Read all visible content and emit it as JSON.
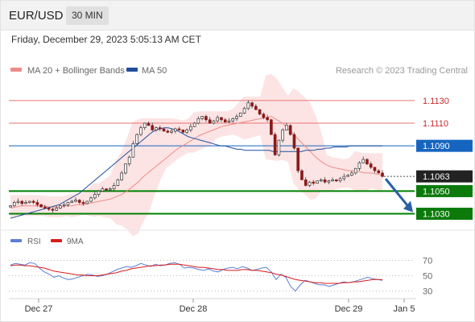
{
  "header": {
    "symbol": "EUR/USD",
    "timeframe": "30 MIN",
    "datetime": "Friday, December 29, 2023 5:05:13 AM CET"
  },
  "legend": {
    "ma20_label": "MA 20 + Bollinger Bands",
    "ma20_color": "#f08a8a",
    "ma50_label": "MA 50",
    "ma50_color": "#1f4e9c",
    "attribution": "Research © 2023 Trading Central"
  },
  "rsi_legend": {
    "rsi_label": "RSI",
    "rsi_color": "#5b7fd6",
    "ma9_label": "9MA",
    "ma9_color": "#d81b1b"
  },
  "chart_data": [
    {
      "type": "candlestick",
      "x_ticks": [
        "Dec 27",
        "Dec 28",
        "Dec 29",
        "Jan 5"
      ],
      "ylim": [
        1.1019,
        1.1147
      ],
      "current_price": 1.1063,
      "levels": [
        {
          "label": "1.1130",
          "value": 1.113,
          "kind": "resistance",
          "color": "#e57373"
        },
        {
          "label": "1.1110",
          "value": 1.111,
          "kind": "resistance",
          "color": "#e57373"
        },
        {
          "label": "1.1090",
          "value": 1.109,
          "kind": "pivot",
          "color": "#1565c0"
        },
        {
          "label": "1.1063",
          "value": 1.1063,
          "kind": "last",
          "color": "#333333"
        },
        {
          "label": "1.1050",
          "value": 1.105,
          "kind": "support",
          "color": "#008000"
        },
        {
          "label": "1.1030",
          "value": 1.103,
          "kind": "support",
          "color": "#008000"
        }
      ],
      "forecast_target": 1.103,
      "path": [
        1.1037,
        1.104,
        1.1041,
        1.1039,
        1.104,
        1.1041,
        1.104,
        1.1038,
        1.1036,
        1.1035,
        1.1034,
        1.1033,
        1.1035,
        1.1037,
        1.1038,
        1.104,
        1.1041,
        1.1042,
        1.104,
        1.1039,
        1.1041,
        1.1044,
        1.1047,
        1.105,
        1.1052,
        1.1051,
        1.1052,
        1.1055,
        1.106,
        1.1066,
        1.1074,
        1.108,
        1.1092,
        1.11,
        1.1106,
        1.111,
        1.1108,
        1.1104,
        1.1106,
        1.1105,
        1.1103,
        1.1102,
        1.1103,
        1.1105,
        1.1104,
        1.1102,
        1.1104,
        1.1107,
        1.111,
        1.1114,
        1.1116,
        1.1113,
        1.111,
        1.1112,
        1.1115,
        1.1113,
        1.1111,
        1.1112,
        1.1114,
        1.1116,
        1.1119,
        1.1123,
        1.1128,
        1.1125,
        1.1122,
        1.1118,
        1.1115,
        1.1113,
        1.11,
        1.1082,
        1.1095,
        1.1104,
        1.1108,
        1.11,
        1.1088,
        1.1068,
        1.106,
        1.1055,
        1.1058,
        1.1057,
        1.1059,
        1.106,
        1.1058,
        1.1059,
        1.106,
        1.1059,
        1.1061,
        1.1063,
        1.1064,
        1.1066,
        1.107,
        1.1075,
        1.1078,
        1.1074,
        1.1071,
        1.1068,
        1.1066,
        1.1063
      ],
      "ma20": [
        1.1035,
        1.1036,
        1.1037,
        1.1037,
        1.1037,
        1.1037,
        1.1037,
        1.1036,
        1.1036,
        1.1036,
        1.1037,
        1.1037,
        1.1038,
        1.1038,
        1.1039,
        1.104,
        1.1041,
        1.1042,
        1.1043,
        1.1045,
        1.1047,
        1.105,
        1.1054,
        1.1058,
        1.1063,
        1.1067,
        1.1071,
        1.1075,
        1.1079,
        1.1083,
        1.1087,
        1.109,
        1.1093,
        1.1096,
        1.1099,
        1.1101,
        1.1103,
        1.1105,
        1.1107,
        1.1108,
        1.1109,
        1.111,
        1.1111,
        1.1112,
        1.1113,
        1.1114,
        1.1115,
        1.1116,
        1.1113,
        1.111,
        1.1105,
        1.11,
        1.1095,
        1.109,
        1.1085,
        1.108,
        1.1076,
        1.1073,
        1.1071,
        1.107,
        1.1069,
        1.1068,
        1.1068,
        1.1067,
        1.1066,
        1.1066,
        1.1065,
        1.1064
      ],
      "ma50": [
        1.1026,
        1.1027,
        1.1028,
        1.1029,
        1.103,
        1.1031,
        1.1032,
        1.1033,
        1.1034,
        1.1035,
        1.1036,
        1.1037,
        1.1038,
        1.104,
        1.1042,
        1.1044,
        1.1046,
        1.1048,
        1.1051,
        1.1054,
        1.1057,
        1.106,
        1.1063,
        1.1066,
        1.1069,
        1.1072,
        1.1075,
        1.1078,
        1.1081,
        1.1084,
        1.1087,
        1.109,
        1.1093,
        1.1096,
        1.1099,
        1.1102,
        1.1104,
        1.1105,
        1.1106,
        1.1106,
        1.1105,
        1.1104,
        1.1102,
        1.11,
        1.1098,
        1.1097,
        1.1096,
        1.1095,
        1.1094,
        1.1093,
        1.1092,
        1.1091,
        1.109,
        1.109,
        1.1089,
        1.1088,
        1.1087,
        1.1087,
        1.1086,
        1.1086,
        1.1086,
        1.1086,
        1.1086,
        1.1086,
        1.1086,
        1.1085,
        1.1085,
        1.1085,
        1.1085,
        1.1085,
        1.1085,
        1.1085,
        1.1085,
        1.1086,
        1.1086,
        1.1086,
        1.1087,
        1.1087,
        1.1088,
        1.1088,
        1.1089,
        1.1089,
        1.1089,
        1.1089,
        1.109,
        1.109,
        1.109,
        1.109,
        1.109,
        1.109,
        1.109,
        1.109,
        1.109
      ]
    },
    {
      "type": "line",
      "name": "RSI",
      "yticks": [
        30,
        50,
        70
      ],
      "ylim": [
        20,
        80
      ],
      "rsi": [
        64,
        66,
        65,
        64,
        67,
        66,
        60,
        55,
        52,
        48,
        50,
        47,
        45,
        46,
        48,
        50,
        52,
        51,
        49,
        50,
        52,
        55,
        58,
        60,
        62,
        61,
        63,
        66,
        64,
        62,
        65,
        63,
        64,
        66,
        67,
        65,
        60,
        61,
        60,
        58,
        57,
        59,
        56,
        55,
        58,
        60,
        61,
        59,
        62,
        60,
        57,
        58,
        60,
        61,
        55,
        45,
        52,
        48,
        36,
        30,
        38,
        44,
        42,
        40,
        38,
        38,
        36,
        38,
        40,
        42,
        41,
        42,
        44,
        46,
        48,
        46,
        45,
        44
      ],
      "rsi_9ma": [
        63,
        64,
        64,
        63,
        63,
        62,
        61,
        60,
        58,
        56,
        55,
        54,
        53,
        52,
        51,
        51,
        50,
        50,
        50,
        51,
        52,
        53,
        54,
        56,
        57,
        59,
        60,
        61,
        62,
        63,
        63,
        64,
        64,
        65,
        65,
        65,
        64,
        63,
        62,
        61,
        61,
        60,
        59,
        58,
        58,
        57,
        57,
        57,
        58,
        58,
        57,
        57,
        56,
        55,
        54,
        52,
        51,
        49,
        47,
        45,
        44,
        43,
        42,
        41,
        41,
        40,
        40,
        40,
        40,
        41,
        41,
        42,
        42,
        43,
        44,
        45,
        45,
        45
      ]
    }
  ]
}
